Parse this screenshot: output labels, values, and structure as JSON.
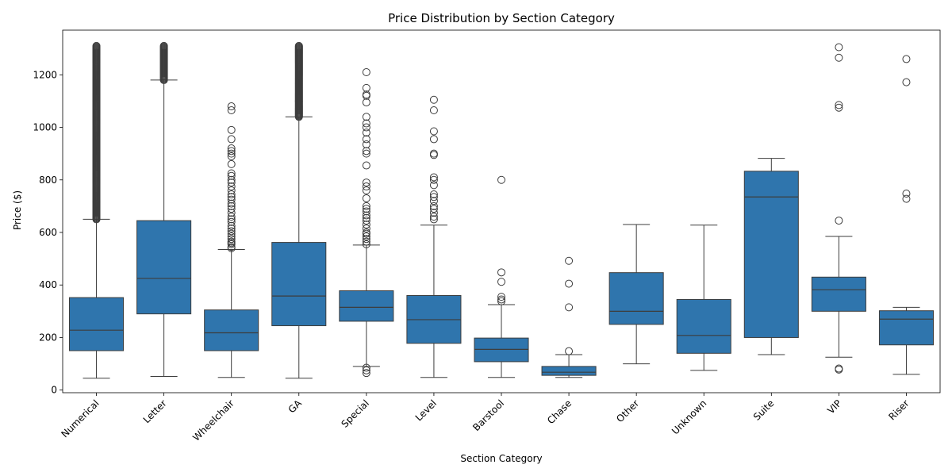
{
  "chart_data": {
    "type": "box",
    "title": "Price Distribution by Section Category",
    "xlabel": "Section Category",
    "ylabel": "Price ($)",
    "ylim": [
      -10,
      1370
    ],
    "yticks": [
      0,
      200,
      400,
      600,
      800,
      1000,
      1200
    ],
    "box_color": "#2f75ad",
    "edge_color": "#3d3d3d",
    "categories": [
      "Numerical",
      "Letter",
      "Wheelchair",
      "GA",
      "Special",
      "Level",
      "Barstool",
      "Chase",
      "Other",
      "Unknown",
      "Suite",
      "VIP",
      "Riser"
    ],
    "boxes": [
      {
        "category": "Numerical",
        "whisker_low": 45,
        "q1": 150,
        "median": 228,
        "q3": 352,
        "whisker_high": 650,
        "outliers": [],
        "outlier_band": [
          650,
          1310
        ]
      },
      {
        "category": "Letter",
        "whisker_low": 52,
        "q1": 290,
        "median": 425,
        "q3": 645,
        "whisker_high": 1180,
        "outliers": [],
        "outlier_band": [
          1180,
          1310
        ]
      },
      {
        "category": "Wheelchair",
        "whisker_low": 48,
        "q1": 150,
        "median": 218,
        "q3": 305,
        "whisker_high": 535,
        "outliers": [
          1080,
          1065,
          990,
          955,
          920,
          910,
          900,
          890,
          860,
          825,
          815,
          800,
          790,
          775,
          760,
          745,
          735,
          725,
          710,
          700,
          690,
          675,
          660,
          650,
          640,
          625,
          615,
          605,
          595,
          585,
          575,
          565,
          560,
          555,
          545,
          540
        ],
        "outlier_band": []
      },
      {
        "category": "GA",
        "whisker_low": 45,
        "q1": 245,
        "median": 358,
        "q3": 562,
        "whisker_high": 1040,
        "outliers": [],
        "outlier_band": [
          1040,
          1310
        ]
      },
      {
        "category": "Special",
        "whisker_low": 90,
        "q1": 262,
        "median": 315,
        "q3": 378,
        "whisker_high": 552,
        "outliers": [
          1210,
          1150,
          1125,
          1120,
          1095,
          1040,
          1015,
          1000,
          980,
          955,
          935,
          910,
          900,
          855,
          790,
          775,
          760,
          730,
          700,
          690,
          680,
          665,
          655,
          645,
          630,
          615,
          600,
          595,
          585,
          575,
          565,
          555,
          85,
          75,
          65
        ],
        "outlier_band": []
      },
      {
        "category": "Level",
        "whisker_low": 48,
        "q1": 178,
        "median": 268,
        "q3": 360,
        "whisker_high": 628,
        "outliers": [
          1105,
          1065,
          985,
          955,
          900,
          895,
          810,
          800,
          780,
          745,
          735,
          720,
          700,
          690,
          675,
          660,
          650
        ],
        "outlier_band": []
      },
      {
        "category": "Barstool",
        "whisker_low": 48,
        "q1": 108,
        "median": 155,
        "q3": 198,
        "whisker_high": 325,
        "outliers": [
          800,
          448,
          412,
          355,
          345,
          338
        ],
        "outlier_band": []
      },
      {
        "category": "Chase",
        "whisker_low": 48,
        "q1": 56,
        "median": 68,
        "q3": 90,
        "whisker_high": 135,
        "outliers": [
          492,
          405,
          315,
          148
        ],
        "outlier_band": []
      },
      {
        "category": "Other",
        "whisker_low": 100,
        "q1": 250,
        "median": 300,
        "q3": 447,
        "whisker_high": 630,
        "outliers": [],
        "outlier_band": []
      },
      {
        "category": "Unknown",
        "whisker_low": 75,
        "q1": 140,
        "median": 208,
        "q3": 345,
        "whisker_high": 628,
        "outliers": [],
        "outlier_band": []
      },
      {
        "category": "Suite",
        "whisker_low": 135,
        "q1": 200,
        "median": 735,
        "q3": 833,
        "whisker_high": 882,
        "outliers": [],
        "outlier_band": []
      },
      {
        "category": "VIP",
        "whisker_low": 125,
        "q1": 300,
        "median": 382,
        "q3": 430,
        "whisker_high": 585,
        "outliers": [
          1305,
          1265,
          1085,
          1075,
          645,
          82,
          78
        ],
        "outlier_band": []
      },
      {
        "category": "Riser",
        "whisker_low": 60,
        "q1": 172,
        "median": 270,
        "q3": 302,
        "whisker_high": 315,
        "outliers": [
          1260,
          1172,
          748,
          728
        ],
        "outlier_band": []
      }
    ]
  }
}
